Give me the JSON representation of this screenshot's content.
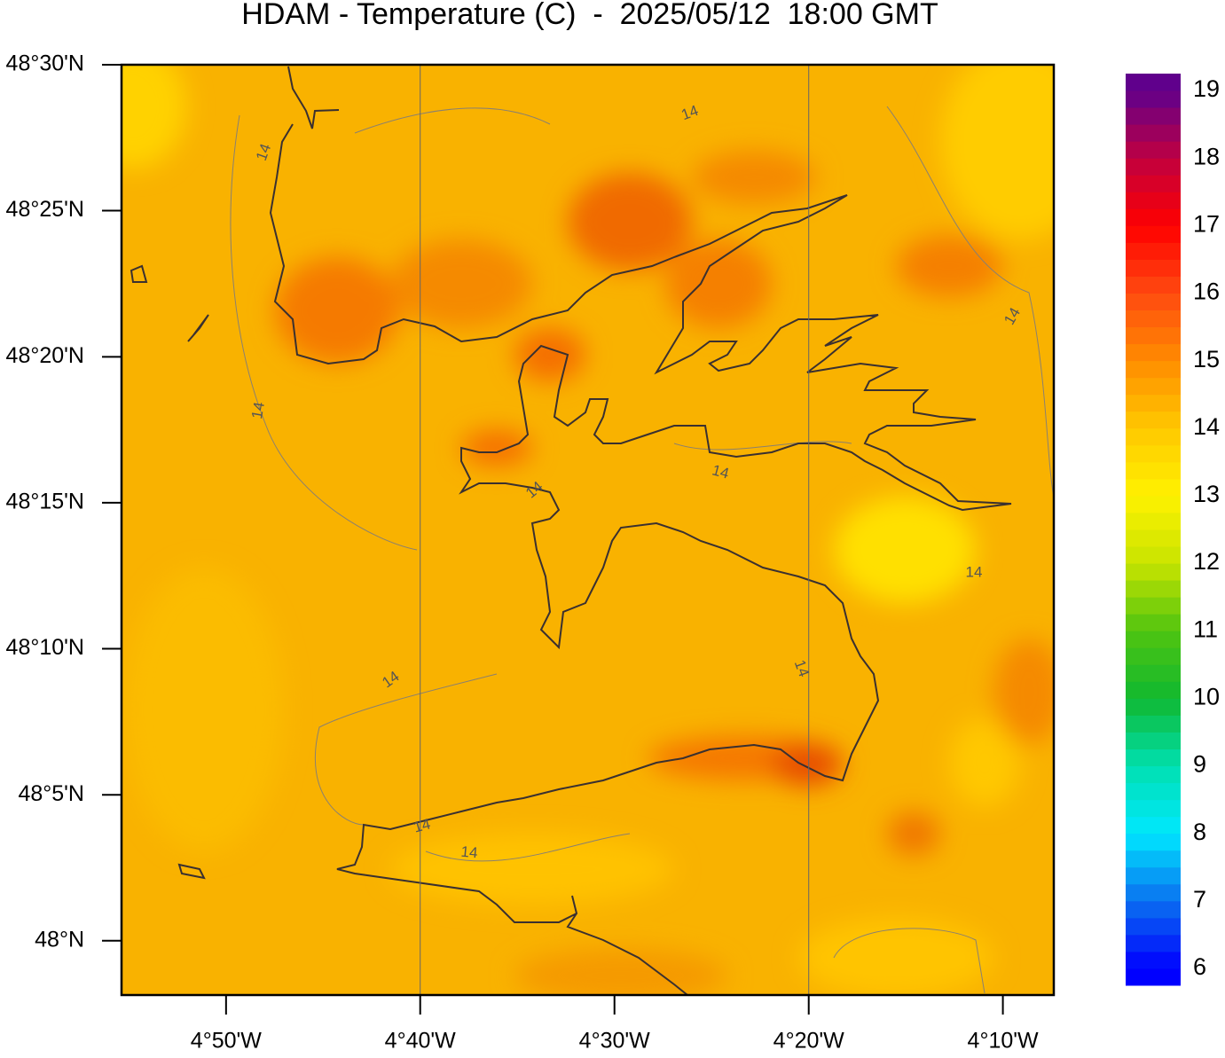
{
  "chart_data": {
    "type": "contour-map",
    "title": "HDAM - Temperature (C)  -  2025/05/12  18:00 GMT",
    "xlim": [
      -4.923,
      -4.123
    ],
    "ylim": [
      47.969,
      48.5
    ],
    "xticks": [
      {
        "value": -4.8333,
        "label": "4°50'W"
      },
      {
        "value": -4.6667,
        "label": "4°40'W"
      },
      {
        "value": -4.5,
        "label": "4°30'W"
      },
      {
        "value": -4.3333,
        "label": "4°20'W"
      },
      {
        "value": -4.1667,
        "label": "4°10'W"
      }
    ],
    "yticks": [
      {
        "value": 48.5,
        "label": "48°30'N"
      },
      {
        "value": 48.4167,
        "label": "48°25'N"
      },
      {
        "value": 48.3333,
        "label": "48°20'N"
      },
      {
        "value": 48.25,
        "label": "48°15'N"
      },
      {
        "value": 48.1667,
        "label": "48°10'N"
      },
      {
        "value": 48.0833,
        "label": "48°5'N"
      },
      {
        "value": 48.0,
        "label": "48°N"
      }
    ],
    "xgrid": [
      -4.6667,
      -4.3333
    ],
    "contour_labels": [
      14,
      14,
      14,
      14,
      14,
      14,
      14,
      14,
      14,
      14,
      14
    ],
    "colorbar": {
      "lim": [
        5.75,
        19.25
      ],
      "band_step": 0.25,
      "ticks": [
        6,
        7,
        8,
        9,
        10,
        11,
        12,
        13,
        14,
        15,
        16,
        17,
        18,
        19
      ],
      "colors": [
        "#0000ff",
        "#0a70f0",
        "#00e8ff",
        "#00e0b0",
        "#10b830",
        "#50c410",
        "#c8e400",
        "#fff200",
        "#ffc800",
        "#ff8c00",
        "#ff4a10",
        "#ff0000",
        "#c00040",
        "#60008c"
      ]
    }
  }
}
